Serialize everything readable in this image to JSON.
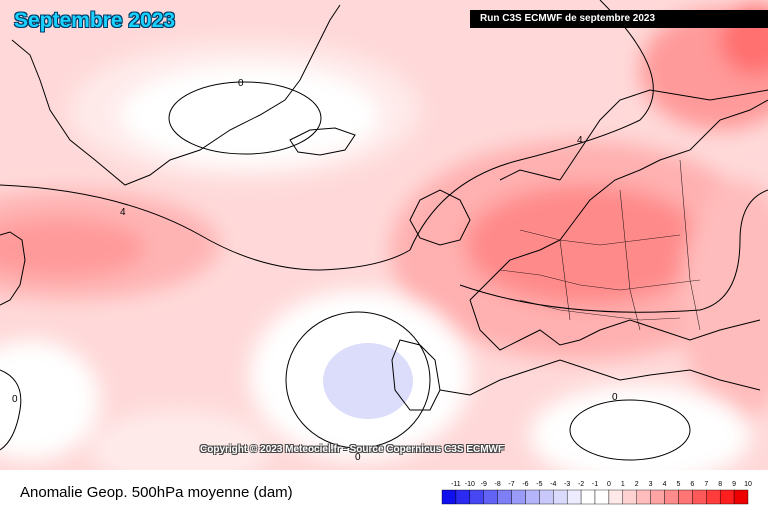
{
  "header": {
    "title": "Septembre 2023",
    "run_label": "Run C3S ECMWF de septembre 2023"
  },
  "map": {
    "copyright": "Copyright © 2023 Meteociel.fr - Source Copernicus C3S ECMWF",
    "contour_labels": [
      "0",
      "4",
      "4",
      "0",
      "0",
      "0"
    ]
  },
  "footer": {
    "caption": "Anomalie Geop. 500hPa moyenne (dam)"
  },
  "legend": {
    "ticks": [
      "-11",
      "-10",
      "-9",
      "-8",
      "-7",
      "-6",
      "-5",
      "-4",
      "-3",
      "-2",
      "-1",
      "0",
      "1",
      "2",
      "3",
      "4",
      "5",
      "6",
      "7",
      "8",
      "9",
      "10"
    ],
    "colors": [
      "#1010ee",
      "#2a2af0",
      "#4646f2",
      "#6262f4",
      "#7e7ef6",
      "#9a9af8",
      "#b4b4fa",
      "#c8c8fb",
      "#dadafd",
      "#ececfe",
      "#ffffff",
      "#ffffff",
      "#ffe8e8",
      "#ffd2d2",
      "#ffbcbc",
      "#ffa4a4",
      "#ff8c8c",
      "#ff7474",
      "#ff5858",
      "#ff3c3c",
      "#ff1e1e",
      "#ee0000"
    ]
  }
}
